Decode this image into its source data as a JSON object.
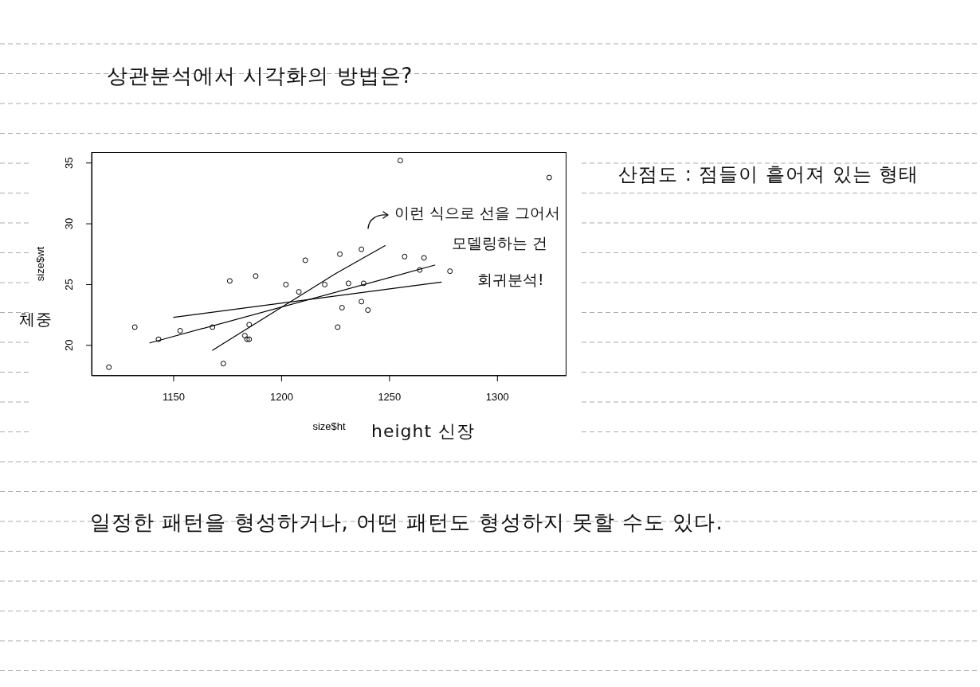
{
  "chart_data": {
    "type": "scatter",
    "title": "상관분석에서 시각화의 방법은?",
    "xlabel": "size$ht",
    "ylabel": "size$wt",
    "annotations": [
      "산점도 : 점들이 흩어져 있는 형태",
      "이런 식으로 선을 그어서\n모델링하는 건\n회귀분석!",
      "체중",
      "height 신장",
      "일정한 패턴을 형성하거나, 어떤 패턴도 형성하지 못할 수도 있다."
    ],
    "series": [
      {
        "color": "#000000",
        "marker": "circle",
        "x": [
          1120,
          1132,
          1143,
          1153,
          1168,
          1173,
          1176,
          1183,
          1184,
          1185,
          1185,
          1188,
          1202,
          1208,
          1211,
          1220,
          1226,
          1227,
          1228,
          1231,
          1237,
          1237,
          1238,
          1240,
          1255,
          1257,
          1264,
          1266,
          1278,
          1324
        ],
        "values": [
          18.2,
          21.5,
          20.5,
          21.2,
          21.5,
          18.5,
          25.3,
          20.8,
          20.5,
          20.5,
          21.7,
          25.7,
          25.0,
          24.4,
          27.0,
          25.0,
          21.5,
          27.5,
          23.1,
          25.1,
          27.9,
          23.6,
          25.1,
          22.9,
          35.2,
          27.3,
          26.2,
          27.2,
          26.1,
          33.8
        ]
      },
      {
        "type": "line",
        "color": "#000000",
        "x": [
          1168,
          1225,
          1248
        ],
        "values": [
          19.6,
          25.9,
          28.2
        ]
      },
      {
        "type": "line",
        "color": "#000000",
        "x": [
          1139,
          1271
        ],
        "values": [
          20.2,
          26.6
        ]
      },
      {
        "type": "line",
        "color": "#000000",
        "x": [
          1150,
          1274
        ],
        "values": [
          22.3,
          25.2
        ]
      }
    ],
    "xlim": [
      1112,
      1332
    ],
    "ylim": [
      17.5,
      35.9
    ],
    "xticks": [
      1150,
      1200,
      1250,
      1300
    ],
    "yticks": [
      20,
      25,
      30,
      35
    ]
  }
}
